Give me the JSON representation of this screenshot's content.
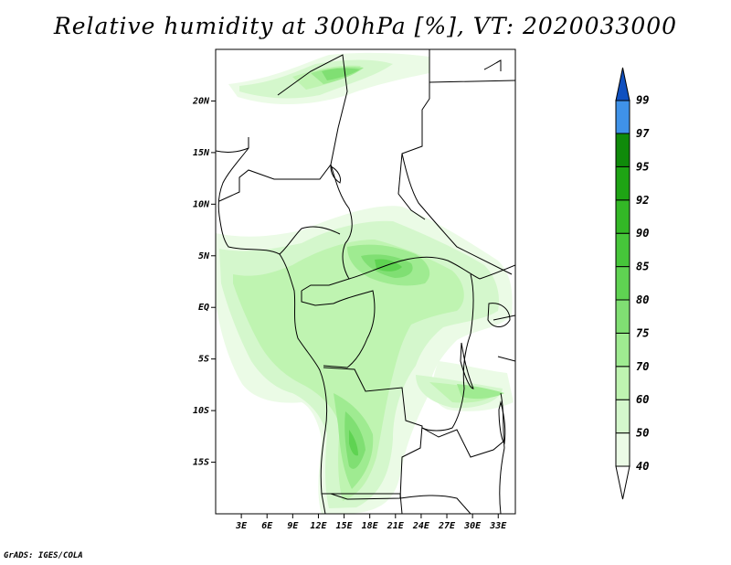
{
  "title": "Relative humidity at 300hPa [%], VT: 2020033000",
  "credit": "GrADS: IGES/COLA",
  "map": {
    "lon_range": [
      0,
      35
    ],
    "lat_range": [
      -20,
      25
    ],
    "lat_ticks": [
      {
        "label": "20N",
        "value": 20
      },
      {
        "label": "15N",
        "value": 15
      },
      {
        "label": "10N",
        "value": 10
      },
      {
        "label": "5N",
        "value": 5
      },
      {
        "label": "EQ",
        "value": 0
      },
      {
        "label": "5S",
        "value": -5
      },
      {
        "label": "10S",
        "value": -10
      },
      {
        "label": "15S",
        "value": -15
      }
    ],
    "lon_ticks": [
      {
        "label": "3E",
        "value": 3
      },
      {
        "label": "6E",
        "value": 6
      },
      {
        "label": "9E",
        "value": 9
      },
      {
        "label": "12E",
        "value": 12
      },
      {
        "label": "15E",
        "value": 15
      },
      {
        "label": "18E",
        "value": 18
      },
      {
        "label": "21E",
        "value": 21
      },
      {
        "label": "24E",
        "value": 24
      },
      {
        "label": "27E",
        "value": 27
      },
      {
        "label": "30E",
        "value": 30
      },
      {
        "label": "33E",
        "value": 33
      }
    ]
  },
  "colorbar": {
    "levels": [
      "40",
      "50",
      "60",
      "70",
      "75",
      "80",
      "85",
      "90",
      "92",
      "95",
      "97",
      "99"
    ],
    "colors": [
      "#ebfbe6",
      "#d4f7cc",
      "#bff4b1",
      "#9feb91",
      "#80df73",
      "#5fd352",
      "#46c63a",
      "#33b826",
      "#1ea414",
      "#0f8a0a",
      "#3f92e8",
      "#1f6fd8",
      "#1050bf"
    ],
    "min_color": "#ffffff"
  }
}
